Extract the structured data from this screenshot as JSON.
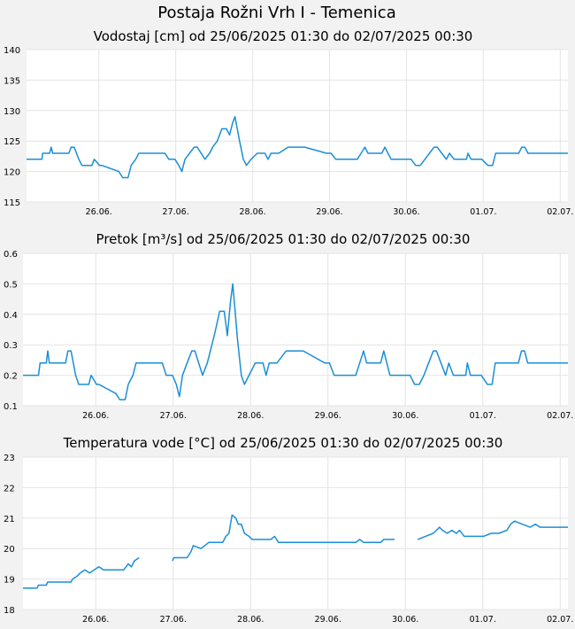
{
  "page": {
    "title": "Postaja Rožni Vrh I - Temenica"
  },
  "chart_data": [
    {
      "type": "line",
      "title": "Vodostaj [cm] od 25/06/2025 01:30 do 02/07/2025 00:30",
      "xlabel": "",
      "ylabel": "",
      "x_range_days": [
        0,
        7.04
      ],
      "ylim": [
        115,
        140
      ],
      "yticks": [
        "115",
        "120",
        "125",
        "130",
        "135",
        "140"
      ],
      "xtick_labels": [
        "26.06.",
        "27.06.",
        "28.06.",
        "29.06.",
        "30.06.",
        "01.07.",
        "02.07."
      ],
      "xtick_days": [
        0.94,
        1.94,
        2.94,
        3.94,
        4.94,
        5.94,
        6.94
      ],
      "grid": true,
      "line_color": "#1a8fd6",
      "series": [
        {
          "x": [
            0.0,
            0.2,
            0.21,
            0.3,
            0.32,
            0.34,
            0.36,
            0.38,
            0.55,
            0.58,
            0.62,
            0.65,
            0.68,
            0.72,
            0.85,
            0.88,
            0.95,
            0.98,
            1.2,
            1.25,
            1.32,
            1.36,
            1.42,
            1.46,
            1.5,
            1.55,
            1.6,
            1.8,
            1.85,
            1.93,
            1.98,
            2.02,
            2.06,
            2.12,
            2.18,
            2.22,
            2.32,
            2.38,
            2.42,
            2.48,
            2.54,
            2.6,
            2.64,
            2.68,
            2.71,
            2.74,
            2.77,
            2.82,
            2.86,
            2.92,
            3.0,
            3.1,
            3.14,
            3.18,
            3.24,
            3.28,
            3.4,
            3.5,
            3.56,
            3.62,
            3.9,
            3.96,
            4.02,
            4.3,
            4.35,
            4.4,
            4.44,
            4.48,
            4.62,
            4.66,
            4.7,
            4.74,
            4.76,
            5.0,
            5.06,
            5.12,
            5.18,
            5.24,
            5.3,
            5.34,
            5.4,
            5.46,
            5.5,
            5.56,
            5.64,
            5.72,
            5.74,
            5.78,
            5.92,
            6.0,
            6.06,
            6.1,
            6.16,
            6.2,
            6.4,
            6.44,
            6.48,
            6.52,
            7.04
          ],
          "y": [
            122,
            122,
            123,
            123,
            124,
            123,
            123,
            123,
            123,
            124,
            124,
            123,
            122,
            121,
            121,
            122,
            121,
            121,
            120,
            119,
            119,
            121,
            122,
            123,
            123,
            123,
            123,
            123,
            122,
            122,
            121,
            120,
            122,
            123,
            124,
            124,
            122,
            123,
            124,
            125,
            127,
            127,
            126,
            128,
            129,
            127,
            125,
            122,
            121,
            122,
            123,
            123,
            122,
            123,
            123,
            123,
            124,
            124,
            124,
            124,
            123,
            123,
            122,
            122,
            123,
            124,
            123,
            123,
            123,
            124,
            123,
            122,
            122,
            122,
            121,
            121,
            122,
            123,
            124,
            124,
            123,
            122,
            123,
            122,
            122,
            122,
            123,
            122,
            122,
            121,
            121,
            123,
            123,
            123,
            123,
            124,
            124,
            123,
            123
          ]
        }
      ]
    },
    {
      "type": "line",
      "title": "Pretok [m³/s] od 25/06/2025 01:30 do 02/07/2025 00:30",
      "xlabel": "",
      "ylabel": "",
      "x_range_days": [
        0,
        7.04
      ],
      "ylim": [
        0.1,
        0.6
      ],
      "yticks": [
        "0.1",
        "0.2",
        "0.3",
        "0.4",
        "0.5",
        "0.6"
      ],
      "xtick_labels": [
        "26.06.",
        "27.06.",
        "28.06.",
        "29.06.",
        "30.06.",
        "01.07.",
        "02.07."
      ],
      "xtick_days": [
        0.94,
        1.94,
        2.94,
        3.94,
        4.94,
        5.94,
        6.94
      ],
      "grid": true,
      "line_color": "#1a8fd6",
      "series": [
        {
          "x": [
            0.0,
            0.2,
            0.22,
            0.3,
            0.32,
            0.34,
            0.36,
            0.55,
            0.58,
            0.62,
            0.65,
            0.68,
            0.72,
            0.85,
            0.88,
            0.95,
            0.98,
            1.2,
            1.25,
            1.32,
            1.36,
            1.42,
            1.46,
            1.5,
            1.8,
            1.85,
            1.93,
            1.98,
            2.02,
            2.06,
            2.12,
            2.18,
            2.22,
            2.32,
            2.38,
            2.42,
            2.48,
            2.54,
            2.6,
            2.64,
            2.68,
            2.71,
            2.74,
            2.77,
            2.82,
            2.86,
            2.92,
            3.0,
            3.1,
            3.14,
            3.18,
            3.24,
            3.28,
            3.4,
            3.5,
            3.56,
            3.62,
            3.9,
            3.96,
            4.02,
            4.3,
            4.35,
            4.4,
            4.44,
            4.48,
            4.62,
            4.66,
            4.7,
            4.74,
            4.76,
            5.0,
            5.06,
            5.12,
            5.18,
            5.24,
            5.3,
            5.34,
            5.4,
            5.46,
            5.5,
            5.56,
            5.64,
            5.72,
            5.74,
            5.78,
            5.92,
            6.0,
            6.06,
            6.1,
            6.16,
            6.2,
            6.4,
            6.44,
            6.48,
            6.52,
            7.04
          ],
          "y": [
            0.2,
            0.2,
            0.24,
            0.24,
            0.28,
            0.24,
            0.24,
            0.24,
            0.28,
            0.28,
            0.24,
            0.2,
            0.17,
            0.17,
            0.2,
            0.17,
            0.17,
            0.14,
            0.12,
            0.12,
            0.17,
            0.2,
            0.24,
            0.24,
            0.24,
            0.2,
            0.2,
            0.17,
            0.13,
            0.2,
            0.24,
            0.28,
            0.28,
            0.2,
            0.24,
            0.28,
            0.34,
            0.41,
            0.41,
            0.33,
            0.44,
            0.5,
            0.41,
            0.32,
            0.2,
            0.17,
            0.2,
            0.24,
            0.24,
            0.2,
            0.24,
            0.24,
            0.24,
            0.28,
            0.28,
            0.28,
            0.28,
            0.24,
            0.24,
            0.2,
            0.2,
            0.24,
            0.28,
            0.24,
            0.24,
            0.24,
            0.28,
            0.24,
            0.2,
            0.2,
            0.2,
            0.17,
            0.17,
            0.2,
            0.24,
            0.28,
            0.28,
            0.24,
            0.2,
            0.24,
            0.2,
            0.2,
            0.2,
            0.24,
            0.2,
            0.2,
            0.17,
            0.17,
            0.24,
            0.24,
            0.24,
            0.24,
            0.28,
            0.28,
            0.24,
            0.24
          ]
        }
      ]
    },
    {
      "type": "line",
      "title": "Temperatura vode [°C] od 25/06/2025 01:30 do 02/07/2025 00:30",
      "xlabel": "",
      "ylabel": "",
      "x_range_days": [
        0,
        7.04
      ],
      "ylim": [
        18,
        23
      ],
      "yticks": [
        "18",
        "19",
        "20",
        "21",
        "22",
        "23"
      ],
      "xtick_labels": [
        "26.06.",
        "27.06.",
        "28.06.",
        "29.06.",
        "30.06.",
        "01.07.",
        "02.07."
      ],
      "xtick_days": [
        0.94,
        1.94,
        2.94,
        3.94,
        4.94,
        5.94,
        6.94
      ],
      "grid": true,
      "line_color": "#1a8fd6",
      "series": [
        {
          "x": [
            0.0,
            0.18,
            0.2,
            0.3,
            0.32,
            0.62,
            0.64,
            0.7,
            0.74,
            0.8,
            0.86,
            0.92,
            0.98,
            1.04,
            1.12,
            1.3,
            1.36,
            1.4,
            1.44,
            1.5
          ],
          "y": [
            18.7,
            18.7,
            18.8,
            18.8,
            18.9,
            18.9,
            19.0,
            19.1,
            19.2,
            19.3,
            19.2,
            19.3,
            19.4,
            19.3,
            19.3,
            19.3,
            19.5,
            19.4,
            19.6,
            19.7
          ]
        },
        {
          "x": [
            1.93,
            1.95,
            2.12,
            2.17,
            2.2,
            2.3,
            2.35,
            2.4,
            2.58,
            2.62,
            2.66,
            2.7,
            2.75,
            2.78,
            2.82,
            2.86,
            2.92,
            2.96,
            3.2,
            3.25,
            3.3,
            3.8,
            4.2,
            4.3,
            4.35,
            4.4,
            4.58,
            4.62,
            4.66,
            4.8
          ],
          "y": [
            19.6,
            19.7,
            19.7,
            19.9,
            20.1,
            20.0,
            20.1,
            20.2,
            20.2,
            20.4,
            20.5,
            21.1,
            21.0,
            20.8,
            20.8,
            20.5,
            20.4,
            20.3,
            20.3,
            20.4,
            20.2,
            20.2,
            20.2,
            20.2,
            20.3,
            20.2,
            20.2,
            20.2,
            20.3,
            20.3
          ]
        },
        {
          "x": [
            5.1,
            5.2,
            5.3,
            5.38,
            5.42,
            5.48,
            5.54,
            5.6,
            5.64,
            5.7,
            5.8,
            5.95,
            6.05,
            6.15,
            6.25,
            6.3,
            6.35,
            6.45,
            6.55,
            6.62,
            6.68,
            7.04
          ],
          "y": [
            20.3,
            20.4,
            20.5,
            20.7,
            20.6,
            20.5,
            20.6,
            20.5,
            20.6,
            20.4,
            20.4,
            20.4,
            20.5,
            20.5,
            20.6,
            20.8,
            20.9,
            20.8,
            20.7,
            20.8,
            20.7,
            20.7
          ]
        }
      ]
    }
  ]
}
